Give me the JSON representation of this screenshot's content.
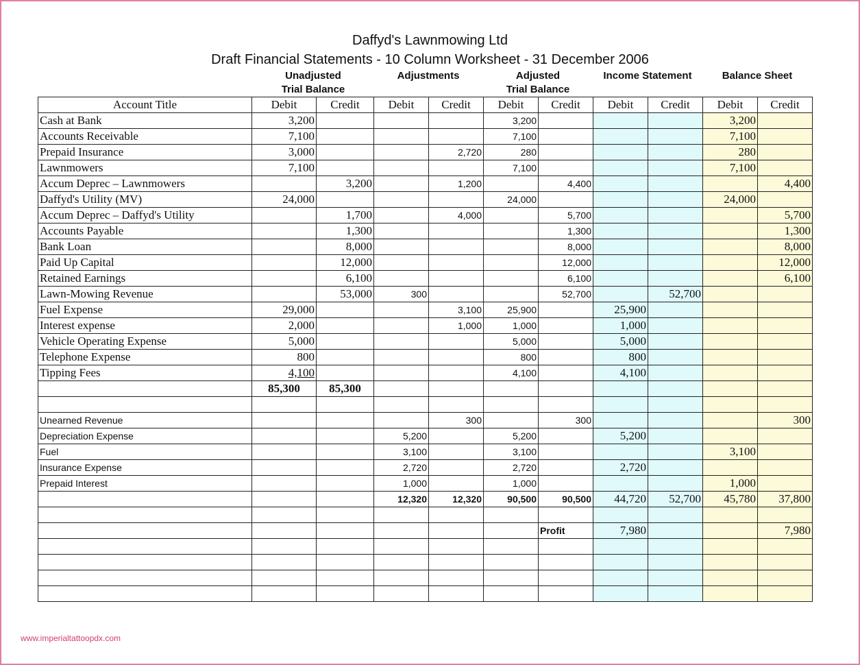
{
  "header": {
    "title": "Daffyd's Lawnmowing Ltd",
    "subtitle": "Draft Financial Statements - 10 Column Worksheet - 31 December 2006"
  },
  "groups": [
    {
      "line1": "Unadjusted",
      "line2": "Trial Balance"
    },
    {
      "line1": "Adjustments"
    },
    {
      "line1": "Adjusted",
      "line2": "Trial Balance"
    },
    {
      "line1": "Income Statement"
    },
    {
      "line1": "Balance Sheet"
    }
  ],
  "table": {
    "rows": [
      [
        "Account Title",
        "Debit",
        "Credit",
        "Debit",
        "Credit",
        "Debit",
        "Credit",
        "Debit",
        "Credit",
        "Debit",
        "Credit"
      ],
      [
        "Cash at Bank",
        "3,200",
        null,
        null,
        null,
        "3,200",
        null,
        null,
        null,
        "3,200",
        null
      ],
      [
        "Accounts Receivable",
        "7,100",
        null,
        null,
        null,
        "7,100",
        null,
        null,
        null,
        "7,100",
        null
      ],
      [
        "Prepaid Insurance",
        "3,000",
        null,
        null,
        "2,720",
        "280",
        null,
        null,
        null,
        "280",
        null
      ],
      [
        "Lawnmowers",
        "7,100",
        null,
        null,
        null,
        "7,100",
        null,
        null,
        null,
        "7,100",
        null
      ],
      [
        "Accum Deprec – Lawnmowers",
        null,
        "3,200",
        null,
        "1,200",
        null,
        "4,400",
        null,
        null,
        null,
        "4,400"
      ],
      [
        "Daffyd's Utility (MV)",
        "24,000",
        null,
        null,
        null,
        "24,000",
        null,
        null,
        null,
        "24,000",
        null
      ],
      [
        "Accum Deprec – Daffyd's Utility",
        null,
        "1,700",
        null,
        "4,000",
        null,
        "5,700",
        null,
        null,
        null,
        "5,700"
      ],
      [
        "Accounts Payable",
        null,
        "1,300",
        null,
        null,
        null,
        "1,300",
        null,
        null,
        null,
        "1,300"
      ],
      [
        "Bank Loan",
        null,
        "8,000",
        null,
        null,
        null,
        "8,000",
        null,
        null,
        null,
        "8,000"
      ],
      [
        "Paid Up Capital",
        null,
        "12,000",
        null,
        null,
        null,
        "12,000",
        null,
        null,
        null,
        "12,000"
      ],
      [
        "Retained Earnings",
        null,
        "6,100",
        null,
        null,
        null,
        "6,100",
        null,
        null,
        null,
        "6,100"
      ],
      [
        "Lawn-Mowing Revenue",
        null,
        "53,000",
        "300",
        null,
        null,
        "52,700",
        null,
        "52,700",
        null,
        null
      ],
      [
        "Fuel Expense",
        "29,000",
        null,
        null,
        "3,100",
        "25,900",
        null,
        "25,900",
        null,
        null,
        null
      ],
      [
        "Interest expense",
        "2,000",
        null,
        null,
        "1,000",
        "1,000",
        null,
        "1,000",
        null,
        null,
        null
      ],
      [
        "Vehicle Operating Expense",
        "5,000",
        null,
        null,
        null,
        "5,000",
        null,
        "5,000",
        null,
        null,
        null
      ],
      [
        "Telephone Expense",
        "800",
        null,
        null,
        null,
        "800",
        null,
        "800",
        null,
        null,
        null
      ],
      [
        "Tipping Fees",
        "4,100",
        null,
        null,
        null,
        "4,100",
        null,
        "4,100",
        null,
        null,
        null
      ],
      [
        null,
        "85,300",
        "85,300",
        null,
        null,
        null,
        null,
        null,
        null,
        null,
        null
      ],
      [
        null,
        null,
        null,
        null,
        null,
        null,
        null,
        null,
        null,
        null,
        null
      ],
      [
        "Unearned Revenue",
        null,
        null,
        null,
        "300",
        null,
        "300",
        null,
        null,
        null,
        "300"
      ],
      [
        "Depreciation Expense",
        null,
        null,
        "5,200",
        null,
        "5,200",
        null,
        "5,200",
        null,
        null,
        null
      ],
      [
        "Fuel",
        null,
        null,
        "3,100",
        null,
        "3,100",
        null,
        null,
        null,
        "3,100",
        null
      ],
      [
        "Insurance Expense",
        null,
        null,
        "2,720",
        null,
        "2,720",
        null,
        "2,720",
        null,
        null,
        null
      ],
      [
        "Prepaid Interest",
        null,
        null,
        "1,000",
        null,
        "1,000",
        null,
        null,
        null,
        "1,000",
        null
      ],
      [
        null,
        null,
        null,
        "12,320",
        "12,320",
        "90,500",
        "90,500",
        "44,720",
        "52,700",
        "45,780",
        "37,800"
      ],
      [
        null,
        null,
        null,
        null,
        null,
        null,
        null,
        null,
        null,
        null,
        null
      ],
      [
        null,
        null,
        null,
        null,
        null,
        null,
        "Profit",
        "7,980",
        null,
        null,
        "7,980"
      ],
      [
        null,
        null,
        null,
        null,
        null,
        null,
        null,
        null,
        null,
        null,
        null
      ],
      [
        null,
        null,
        null,
        null,
        null,
        null,
        null,
        null,
        null,
        null,
        null
      ],
      [
        null,
        null,
        null,
        null,
        null,
        null,
        null,
        null,
        null,
        null,
        null
      ],
      [
        null,
        null,
        null,
        null,
        null,
        null,
        null,
        null,
        null,
        null,
        null
      ]
    ]
  },
  "footer": {
    "watermark": "www.imperialtattoopdx.com"
  }
}
